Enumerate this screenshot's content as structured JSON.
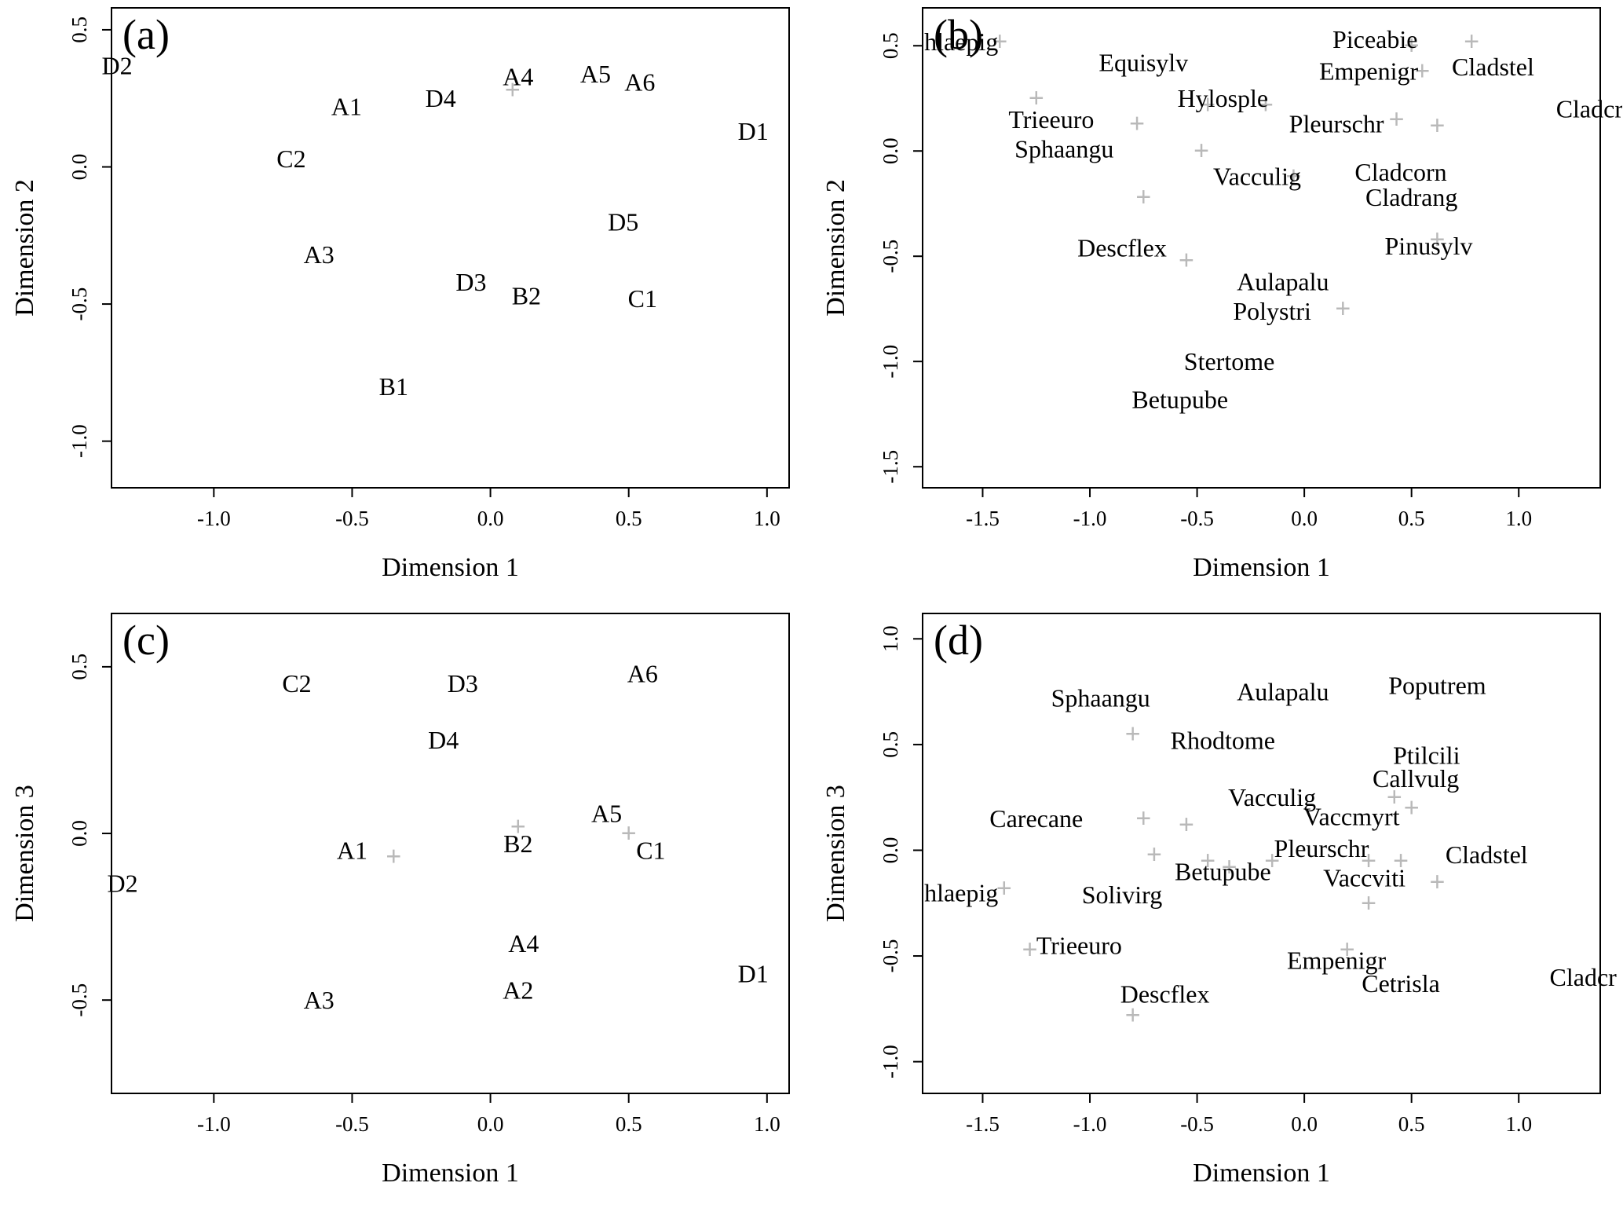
{
  "figure": {
    "description": "Four-panel NMDS ordination scatter plots",
    "marker_color": "#b9b9b9",
    "axis_color": "#000000"
  },
  "chart_data": [
    {
      "id": "a",
      "type": "scatter",
      "letter": "(a)",
      "xlabel": "Dimension 1",
      "ylabel": "Dimension 2",
      "xlim": [
        -1.37,
        1.08
      ],
      "ylim": [
        -1.17,
        0.58
      ],
      "xticks": [
        -1.0,
        -0.5,
        0.0,
        0.5,
        1.0
      ],
      "yticks": [
        0.5,
        0.0,
        -0.5,
        -1.0
      ],
      "points": [
        {
          "label": "D2",
          "x": -1.35,
          "y": 0.37
        },
        {
          "label": "A1",
          "x": -0.52,
          "y": 0.22
        },
        {
          "label": "D4",
          "x": -0.18,
          "y": 0.25
        },
        {
          "label": "A4",
          "x": 0.1,
          "y": 0.33
        },
        {
          "label": "A5",
          "x": 0.38,
          "y": 0.34
        },
        {
          "label": "A6",
          "x": 0.54,
          "y": 0.31
        },
        {
          "label": "D1",
          "x": 0.95,
          "y": 0.13
        },
        {
          "label": "C2",
          "x": -0.72,
          "y": 0.03
        },
        {
          "label": "D5",
          "x": 0.48,
          "y": -0.2
        },
        {
          "label": "A3",
          "x": -0.62,
          "y": -0.32
        },
        {
          "label": "D3",
          "x": -0.07,
          "y": -0.42
        },
        {
          "label": "B2",
          "x": 0.13,
          "y": -0.47
        },
        {
          "label": "C1",
          "x": 0.55,
          "y": -0.48
        },
        {
          "label": "B1",
          "x": -0.35,
          "y": -0.8
        }
      ],
      "markers": [
        {
          "x": 0.08,
          "y": 0.28
        }
      ]
    },
    {
      "id": "b",
      "type": "scatter",
      "letter": "(b)",
      "xlabel": "Dimension 1",
      "ylabel": "Dimension 2",
      "xlim": [
        -1.78,
        1.38
      ],
      "ylim": [
        -1.6,
        0.68
      ],
      "xticks": [
        -1.5,
        -1.0,
        -0.5,
        0.0,
        0.5,
        1.0
      ],
      "yticks": [
        0.5,
        0.0,
        -0.5,
        -1.0,
        -1.5
      ],
      "points": [
        {
          "label": "hlaepig",
          "x": -1.6,
          "y": 0.52
        },
        {
          "label": "Piceabie",
          "x": 0.33,
          "y": 0.53
        },
        {
          "label": "Equisylv",
          "x": -0.75,
          "y": 0.42
        },
        {
          "label": "Empenigr",
          "x": 0.3,
          "y": 0.38
        },
        {
          "label": "Cladstel",
          "x": 0.88,
          "y": 0.4
        },
        {
          "label": "Hylosple",
          "x": -0.38,
          "y": 0.25
        },
        {
          "label": "Cladcr",
          "x": 1.33,
          "y": 0.2
        },
        {
          "label": "Trieeuro",
          "x": -1.18,
          "y": 0.15
        },
        {
          "label": "Pleurschr",
          "x": 0.15,
          "y": 0.13
        },
        {
          "label": "Sphaangu",
          "x": -1.12,
          "y": 0.01
        },
        {
          "label": "Vacculig",
          "x": -0.22,
          "y": -0.12
        },
        {
          "label": "Cladcorn",
          "x": 0.45,
          "y": -0.1
        },
        {
          "label": "Cladrang",
          "x": 0.5,
          "y": -0.22
        },
        {
          "label": "Descflex",
          "x": -0.85,
          "y": -0.46
        },
        {
          "label": "Pinusylv",
          "x": 0.58,
          "y": -0.45
        },
        {
          "label": "Aulapalu",
          "x": -0.1,
          "y": -0.62
        },
        {
          "label": "Polystri",
          "x": -0.15,
          "y": -0.76
        },
        {
          "label": "Stertome",
          "x": -0.35,
          "y": -1.0
        },
        {
          "label": "Betupube",
          "x": -0.58,
          "y": -1.18
        }
      ],
      "markers": [
        {
          "x": -1.42,
          "y": 0.52
        },
        {
          "x": -1.25,
          "y": 0.25
        },
        {
          "x": 0.5,
          "y": 0.5
        },
        {
          "x": 0.78,
          "y": 0.52
        },
        {
          "x": 0.55,
          "y": 0.38
        },
        {
          "x": -0.45,
          "y": 0.22
        },
        {
          "x": -0.18,
          "y": 0.22
        },
        {
          "x": -0.78,
          "y": 0.13
        },
        {
          "x": 0.43,
          "y": 0.15
        },
        {
          "x": 0.62,
          "y": 0.12
        },
        {
          "x": -0.48,
          "y": 0.0
        },
        {
          "x": -0.05,
          "y": -0.12
        },
        {
          "x": -0.75,
          "y": -0.22
        },
        {
          "x": -0.55,
          "y": -0.52
        },
        {
          "x": 0.62,
          "y": -0.42
        },
        {
          "x": 0.18,
          "y": -0.75
        }
      ]
    },
    {
      "id": "c",
      "type": "scatter",
      "letter": "(c)",
      "xlabel": "Dimension 1",
      "ylabel": "Dimension 3",
      "xlim": [
        -1.37,
        1.08
      ],
      "ylim": [
        -0.78,
        0.66
      ],
      "xticks": [
        -1.0,
        -0.5,
        0.0,
        0.5,
        1.0
      ],
      "yticks": [
        0.5,
        0.0,
        -0.5
      ],
      "points": [
        {
          "label": "C2",
          "x": -0.7,
          "y": 0.45
        },
        {
          "label": "D3",
          "x": -0.1,
          "y": 0.45
        },
        {
          "label": "A6",
          "x": 0.55,
          "y": 0.48
        },
        {
          "label": "D4",
          "x": -0.17,
          "y": 0.28
        },
        {
          "label": "A1",
          "x": -0.5,
          "y": -0.05
        },
        {
          "label": "B2",
          "x": 0.1,
          "y": -0.03
        },
        {
          "label": "A5",
          "x": 0.42,
          "y": 0.06
        },
        {
          "label": "C1",
          "x": 0.58,
          "y": -0.05
        },
        {
          "label": "D2",
          "x": -1.33,
          "y": -0.15
        },
        {
          "label": "A4",
          "x": 0.12,
          "y": -0.33
        },
        {
          "label": "A2",
          "x": 0.1,
          "y": -0.47
        },
        {
          "label": "A3",
          "x": -0.62,
          "y": -0.5
        },
        {
          "label": "D1",
          "x": 0.95,
          "y": -0.42
        }
      ],
      "markers": [
        {
          "x": -0.35,
          "y": -0.07
        },
        {
          "x": 0.1,
          "y": 0.02
        },
        {
          "x": 0.5,
          "y": 0.0
        }
      ]
    },
    {
      "id": "d",
      "type": "scatter",
      "letter": "(d)",
      "xlabel": "Dimension 1",
      "ylabel": "Dimension 3",
      "xlim": [
        -1.78,
        1.38
      ],
      "ylim": [
        -1.15,
        1.12
      ],
      "xticks": [
        -1.5,
        -1.0,
        -0.5,
        0.0,
        0.5,
        1.0
      ],
      "yticks": [
        1.0,
        0.5,
        0.0,
        -0.5,
        -1.0
      ],
      "points": [
        {
          "label": "Sphaangu",
          "x": -0.95,
          "y": 0.72
        },
        {
          "label": "Aulapalu",
          "x": -0.1,
          "y": 0.75
        },
        {
          "label": "Poputrem",
          "x": 0.62,
          "y": 0.78
        },
        {
          "label": "Rhodtome",
          "x": -0.38,
          "y": 0.52
        },
        {
          "label": "Ptilcili",
          "x": 0.57,
          "y": 0.45
        },
        {
          "label": "Callvulg",
          "x": 0.52,
          "y": 0.34
        },
        {
          "label": "Vacculig",
          "x": -0.15,
          "y": 0.25
        },
        {
          "label": "Carecane",
          "x": -1.25,
          "y": 0.15
        },
        {
          "label": "Vaccmyrt",
          "x": 0.22,
          "y": 0.16
        },
        {
          "label": "Pleurschr",
          "x": 0.08,
          "y": 0.01
        },
        {
          "label": "Cladstel",
          "x": 0.85,
          "y": -0.02
        },
        {
          "label": "Betupube",
          "x": -0.38,
          "y": -0.1
        },
        {
          "label": "Vaccviti",
          "x": 0.28,
          "y": -0.13
        },
        {
          "label": "hlaepig",
          "x": -1.6,
          "y": -0.2
        },
        {
          "label": "Solivirg",
          "x": -0.85,
          "y": -0.21
        },
        {
          "label": "Trieeuro",
          "x": -1.05,
          "y": -0.45
        },
        {
          "label": "Empenigr",
          "x": 0.15,
          "y": -0.52
        },
        {
          "label": "Cetrisla",
          "x": 0.45,
          "y": -0.63
        },
        {
          "label": "Cladcr",
          "x": 1.3,
          "y": -0.6
        },
        {
          "label": "Descflex",
          "x": -0.65,
          "y": -0.68
        }
      ],
      "markers": [
        {
          "x": -0.8,
          "y": 0.55
        },
        {
          "x": -0.75,
          "y": 0.15
        },
        {
          "x": -0.55,
          "y": 0.12
        },
        {
          "x": 0.42,
          "y": 0.25
        },
        {
          "x": 0.5,
          "y": 0.2
        },
        {
          "x": -0.7,
          "y": -0.02
        },
        {
          "x": -0.45,
          "y": -0.05
        },
        {
          "x": -0.35,
          "y": -0.08
        },
        {
          "x": -0.15,
          "y": -0.05
        },
        {
          "x": 0.3,
          "y": -0.05
        },
        {
          "x": 0.45,
          "y": -0.05
        },
        {
          "x": 0.62,
          "y": -0.15
        },
        {
          "x": -1.4,
          "y": -0.18
        },
        {
          "x": 0.3,
          "y": -0.25
        },
        {
          "x": -1.28,
          "y": -0.47
        },
        {
          "x": 0.2,
          "y": -0.47
        },
        {
          "x": -0.8,
          "y": -0.78
        }
      ]
    }
  ]
}
